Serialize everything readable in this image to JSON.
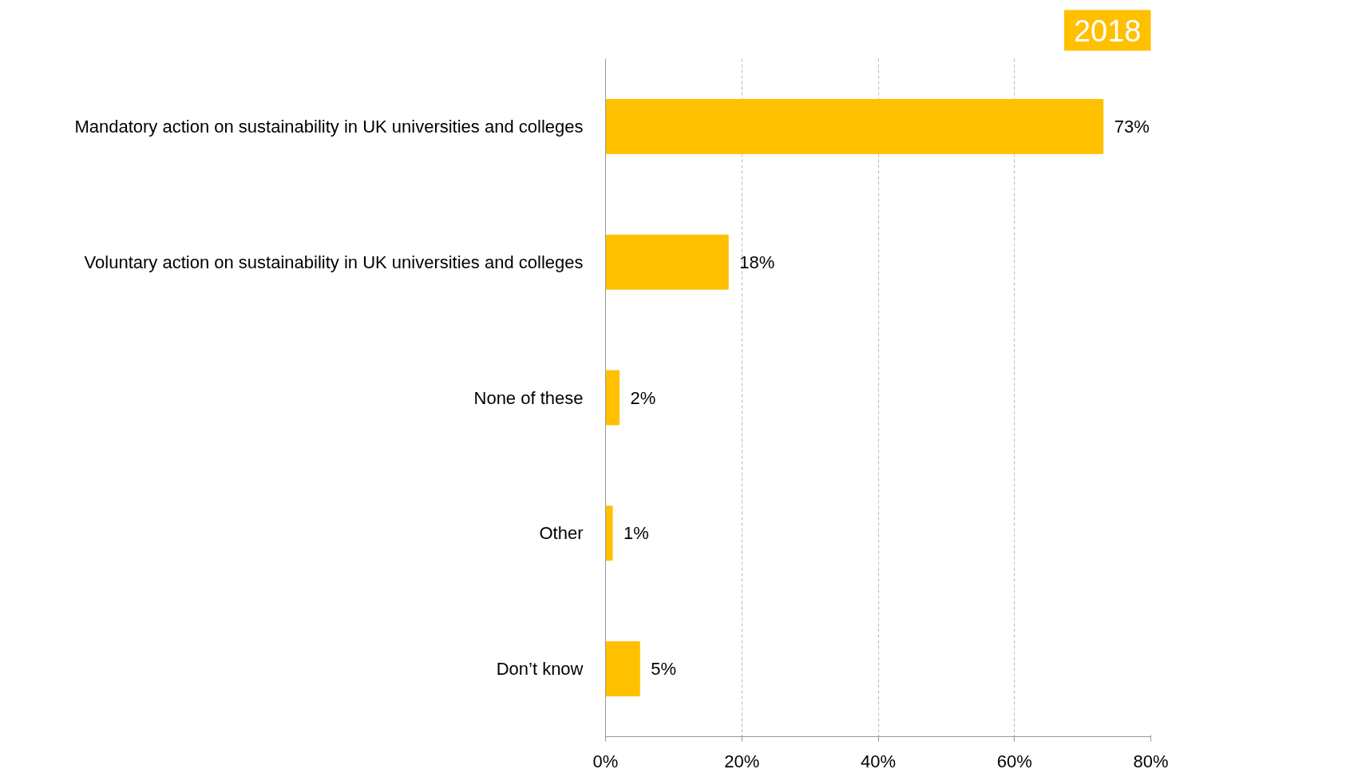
{
  "chart_data": {
    "type": "bar",
    "orientation": "horizontal",
    "title": "2018",
    "categories": [
      "Mandatory action on sustainability in UK universities and colleges",
      "Voluntary action on sustainability in UK universities and colleges",
      "None of these",
      "Other",
      "Don’t know"
    ],
    "values": [
      73,
      18,
      2,
      1,
      5
    ],
    "value_labels": [
      "73%",
      "18%",
      "2%",
      "1%",
      "5%"
    ],
    "color": "#ffc000",
    "xlim": [
      0,
      80
    ],
    "xticks": [
      {
        "value": 0,
        "label": "0%"
      },
      {
        "value": 20,
        "label": "20%"
      },
      {
        "value": 40,
        "label": "40%"
      },
      {
        "value": 60,
        "label": "60%"
      },
      {
        "value": 80,
        "label": "80%"
      }
    ],
    "grid": "x"
  }
}
